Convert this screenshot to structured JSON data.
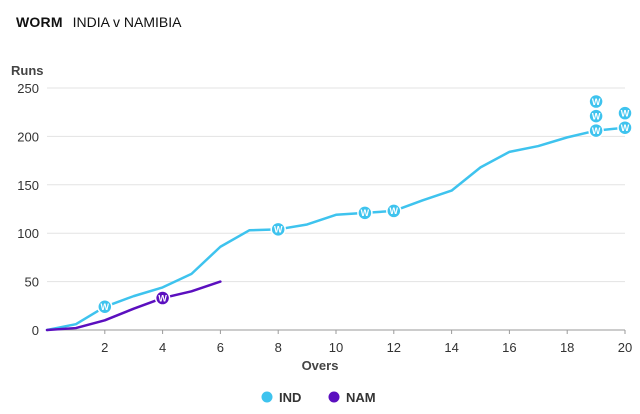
{
  "header": {
    "label": "WORM",
    "match": "INDIA v NAMIBIA"
  },
  "colors": {
    "IND": "#3ec3ee",
    "NAM": "#5b0fbf"
  },
  "chart_data": {
    "type": "line",
    "title": "WORM",
    "subtitle": "INDIA v NAMIBIA",
    "xlabel": "Overs",
    "ylabel": "Runs",
    "xlim": [
      0,
      20
    ],
    "ylim": [
      0,
      250
    ],
    "xticks": [
      2,
      4,
      6,
      8,
      10,
      12,
      14,
      16,
      18,
      20
    ],
    "yticks": [
      0,
      50,
      100,
      150,
      200,
      250
    ],
    "grid": true,
    "legend_position": "bottom",
    "series": [
      {
        "name": "IND",
        "x": [
          0,
          1,
          2,
          3,
          4,
          5,
          6,
          7,
          8,
          9,
          10,
          11,
          12,
          13,
          14,
          15,
          16,
          17,
          18,
          19,
          20
        ],
        "values": [
          0,
          6,
          24,
          35,
          44,
          58,
          86,
          103,
          104,
          109,
          119,
          121,
          123,
          134,
          144,
          168,
          184,
          190,
          199,
          206,
          209
        ],
        "wickets": [
          {
            "x": 2,
            "y": 24
          },
          {
            "x": 8,
            "y": 104
          },
          {
            "x": 11,
            "y": 121
          },
          {
            "x": 12,
            "y": 123
          },
          {
            "x": 19,
            "y": 206
          },
          {
            "x": 19,
            "y": 221
          },
          {
            "x": 19,
            "y": 236
          },
          {
            "x": 20,
            "y": 209
          },
          {
            "x": 20,
            "y": 224
          }
        ]
      },
      {
        "name": "NAM",
        "x": [
          0,
          1,
          2,
          3,
          4,
          5,
          6
        ],
        "values": [
          0,
          2,
          10,
          22,
          33,
          40,
          50
        ],
        "wickets": [
          {
            "x": 4,
            "y": 33
          }
        ]
      }
    ],
    "wicket_marker_label": "W"
  }
}
